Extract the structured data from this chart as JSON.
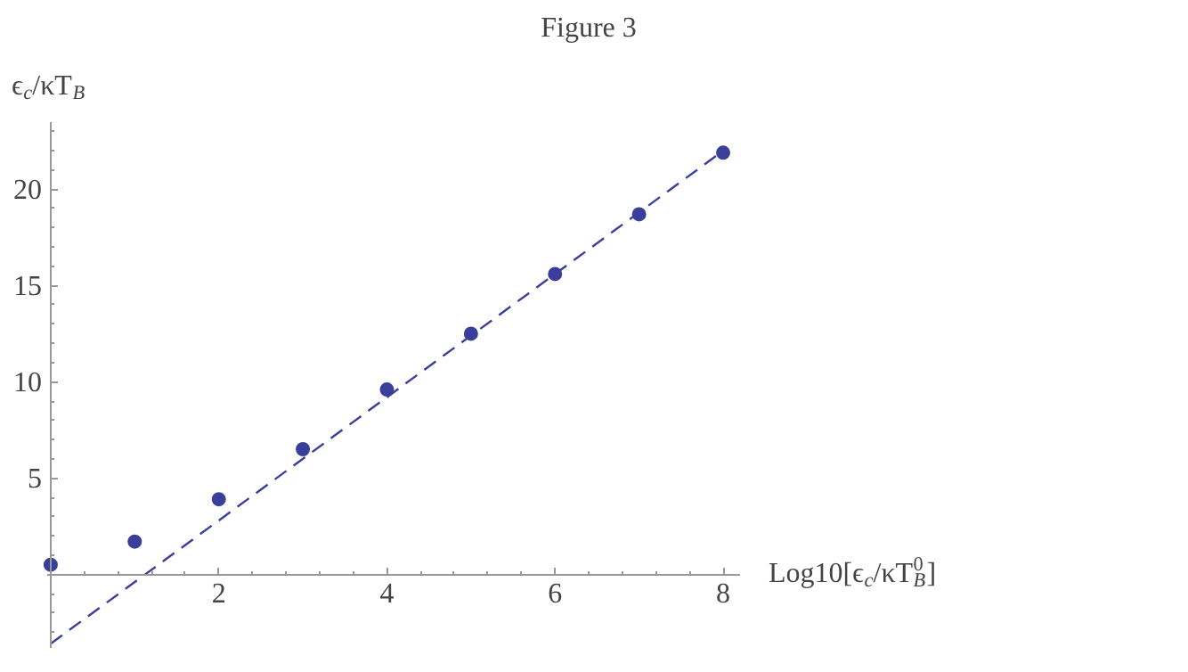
{
  "chart_data": {
    "type": "scatter",
    "title": "Figure 3",
    "xlabel": "Log10[ϵ$_{c}$/κT$_{B}$$^{0}$]",
    "ylabel": "ϵ$_{c}$/κT$_{B}$",
    "xlim": [
      -0.05,
      8.2
    ],
    "ylim": [
      -3.8,
      23.5
    ],
    "xticks": [
      2,
      4,
      6,
      8
    ],
    "yticks": [
      5,
      10,
      15,
      20
    ],
    "grid": false,
    "series": [
      {
        "color": "#3a3f9a",
        "marker": "circle",
        "x": [
          0,
          1,
          2,
          3,
          4,
          5,
          6,
          7,
          8
        ],
        "values": [
          0.5,
          1.7,
          3.9,
          6.5,
          9.6,
          12.5,
          15.6,
          18.7,
          21.9
        ]
      },
      {
        "type": "line",
        "color": "#3a3f9a",
        "line_style": "dashed",
        "x": [
          0,
          8
        ],
        "values": [
          -3.6,
          22.0
        ]
      }
    ]
  }
}
